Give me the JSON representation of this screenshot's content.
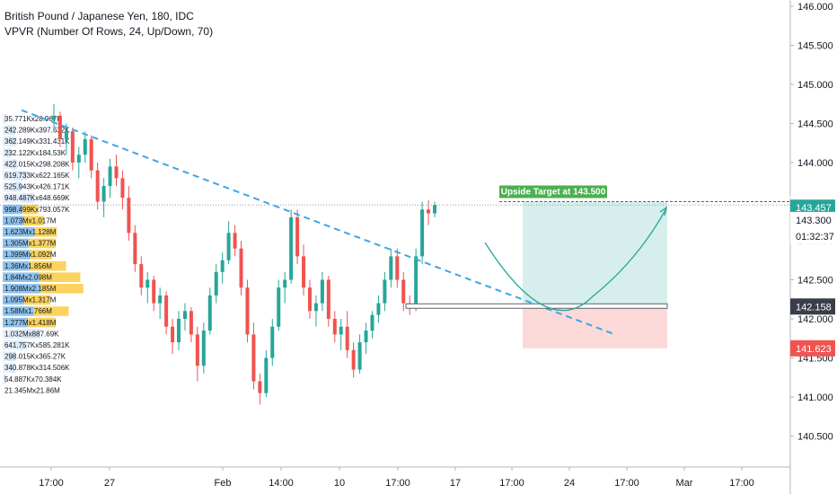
{
  "header": {
    "symbol_line": "British Pound / Japanese Yen, 180, IDC",
    "indicator_line": "VPVR (Number Of Rows, 24, Up/Down, 70)"
  },
  "colors": {
    "up": "#26a69a",
    "down": "#ef5350",
    "trendline": "#3fa5e8",
    "target_zone": "#d6efec",
    "stop_zone": "#fbd9d9",
    "target_label": "#4caf50",
    "vp_blue": "#8fc3ec",
    "vp_yellow": "#fbd35e",
    "last_price_badge": "#26a69a",
    "stop_badge": "#ef5350",
    "entry_badge": "#3a3e4b"
  },
  "chart_data": {
    "type": "candlestick",
    "yaxis": {
      "ticks": [
        "146.000",
        "145.500",
        "145.000",
        "144.500",
        "144.000",
        "143.500",
        "143.000",
        "142.500",
        "142.000",
        "141.500",
        "141.000",
        "140.500"
      ],
      "range": [
        140.2,
        146.1
      ]
    },
    "xaxis": {
      "ticks": [
        "17:00",
        "27",
        "Feb",
        "14:00",
        "10",
        "17:00",
        "17",
        "17:00",
        "24",
        "17:00",
        "Mar",
        "17:00"
      ]
    },
    "price_labels": {
      "target": "143.500",
      "last": "143.457",
      "level_1": "143.300",
      "countdown": "01:32:37",
      "entry": "142.158",
      "stop": "141.623"
    },
    "annotation": {
      "text": "Upside Target at 143.500"
    },
    "volume_profile": [
      "35.771Kx28.967K",
      "242.289Kx397.632K",
      "362.149Kx331.431K",
      "232.122Kx184.53K",
      "422.015Kx298.208K",
      "619.733Kx622.165K",
      "525.943Kx426.171K",
      "948.487Kx648.669K",
      "998.499Kx793.057K",
      "1.073Mx1.017M",
      "1.623Mx1.128M",
      "1.305Mx1.377M",
      "1.399Mx1.092M",
      "1.36Mx1.856M",
      "1.84Mx2.098M",
      "1.908Mx2.185M",
      "1.095Mx1.317M",
      "1.58Mx1.766M",
      "1.277Mx1.418M",
      "1.032Mx887.69K",
      "641.757Kx585.281K",
      "298.015Kx365.27K",
      "340.878Kx314.506K",
      "54.887Kx70.384K",
      "21.345Mx21.86M"
    ],
    "candles": [
      [
        144.55,
        144.75,
        144.4,
        144.6
      ],
      [
        144.6,
        144.65,
        144.2,
        144.3
      ],
      [
        144.3,
        144.5,
        144.1,
        144.4
      ],
      [
        144.4,
        144.45,
        143.9,
        144.0
      ],
      [
        144.0,
        144.2,
        143.8,
        144.1
      ],
      [
        144.1,
        144.4,
        144.0,
        144.3
      ],
      [
        144.3,
        144.35,
        143.8,
        143.9
      ],
      [
        143.9,
        144.0,
        143.4,
        143.5
      ],
      [
        143.5,
        143.8,
        143.3,
        143.7
      ],
      [
        143.7,
        144.05,
        143.55,
        143.95
      ],
      [
        143.95,
        144.1,
        143.7,
        143.8
      ],
      [
        143.8,
        143.9,
        143.4,
        143.55
      ],
      [
        143.55,
        143.7,
        143.0,
        143.1
      ],
      [
        143.1,
        143.2,
        142.6,
        142.7
      ],
      [
        142.7,
        142.8,
        142.3,
        142.4
      ],
      [
        142.4,
        142.6,
        142.2,
        142.5
      ],
      [
        142.5,
        142.55,
        142.1,
        142.2
      ],
      [
        142.2,
        142.4,
        142.0,
        142.3
      ],
      [
        142.3,
        142.35,
        141.8,
        141.9
      ],
      [
        141.9,
        142.0,
        141.55,
        141.7
      ],
      [
        141.7,
        142.1,
        141.6,
        142.0
      ],
      [
        142.0,
        142.2,
        141.85,
        142.1
      ],
      [
        142.1,
        142.15,
        141.7,
        141.8
      ],
      [
        141.8,
        141.9,
        141.2,
        141.4
      ],
      [
        141.4,
        141.95,
        141.3,
        141.85
      ],
      [
        141.85,
        142.4,
        141.8,
        142.3
      ],
      [
        142.3,
        142.7,
        142.2,
        142.6
      ],
      [
        142.6,
        142.85,
        142.45,
        142.75
      ],
      [
        142.75,
        143.25,
        142.7,
        143.1
      ],
      [
        143.1,
        143.2,
        142.8,
        142.9
      ],
      [
        142.9,
        143.0,
        142.3,
        142.4
      ],
      [
        142.4,
        142.5,
        141.7,
        141.8
      ],
      [
        141.8,
        141.95,
        141.1,
        141.2
      ],
      [
        141.2,
        141.3,
        140.9,
        141.05
      ],
      [
        141.05,
        141.6,
        141.0,
        141.5
      ],
      [
        141.5,
        142.0,
        141.4,
        141.9
      ],
      [
        141.9,
        142.5,
        141.85,
        142.4
      ],
      [
        142.4,
        142.6,
        142.2,
        142.5
      ],
      [
        142.5,
        143.4,
        142.45,
        143.3
      ],
      [
        143.3,
        143.4,
        142.7,
        142.8
      ],
      [
        142.8,
        142.95,
        142.3,
        142.4
      ],
      [
        142.4,
        142.5,
        142.0,
        142.1
      ],
      [
        142.1,
        142.3,
        141.9,
        142.2
      ],
      [
        142.2,
        142.6,
        142.1,
        142.5
      ],
      [
        142.5,
        142.55,
        141.9,
        142.0
      ],
      [
        142.0,
        142.1,
        141.7,
        141.8
      ],
      [
        141.8,
        142.0,
        141.6,
        141.9
      ],
      [
        141.9,
        142.1,
        141.5,
        141.6
      ],
      [
        141.6,
        141.7,
        141.25,
        141.35
      ],
      [
        141.35,
        141.8,
        141.3,
        141.7
      ],
      [
        141.7,
        141.95,
        141.55,
        141.85
      ],
      [
        141.85,
        142.1,
        141.75,
        142.05
      ],
      [
        142.05,
        142.3,
        141.95,
        142.2
      ],
      [
        142.2,
        142.6,
        142.1,
        142.5
      ],
      [
        142.5,
        142.9,
        142.4,
        142.8
      ],
      [
        142.8,
        142.9,
        142.4,
        142.5
      ],
      [
        142.5,
        142.6,
        142.1,
        142.2
      ],
      [
        142.2,
        142.3,
        142.05,
        142.15
      ],
      [
        142.15,
        142.9,
        142.1,
        142.8
      ],
      [
        142.8,
        143.5,
        142.7,
        143.4
      ],
      [
        143.4,
        143.52,
        143.2,
        143.35
      ],
      [
        143.35,
        143.5,
        143.3,
        143.457
      ]
    ]
  }
}
